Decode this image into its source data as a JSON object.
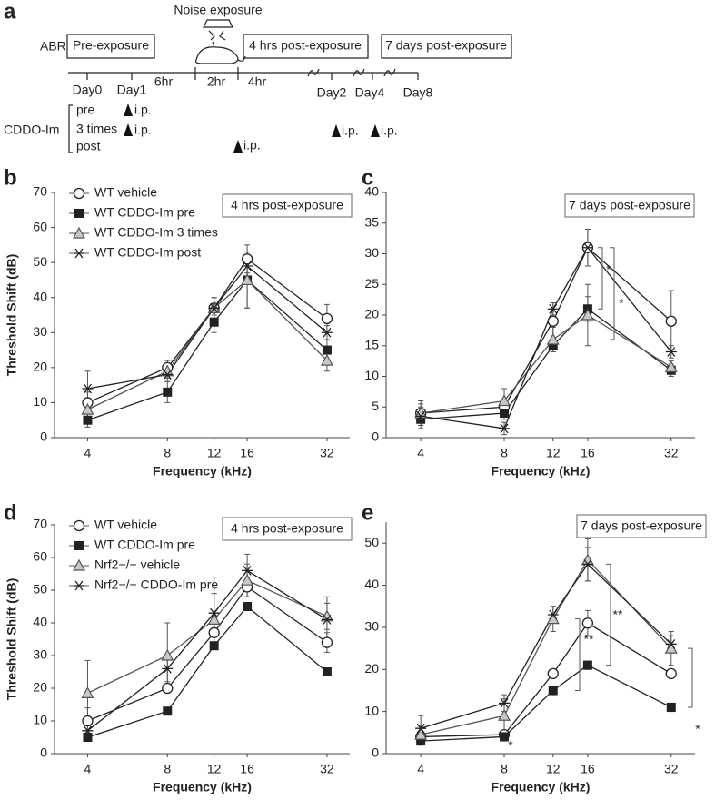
{
  "diagram": {
    "panel": "a",
    "noise_label": "Noise exposure",
    "abr": "ABR",
    "boxes": [
      "Pre-exposure",
      "4 hrs post-exposure",
      "7 days post-exposure"
    ],
    "timeline": [
      "Day0",
      "Day1",
      "6hr",
      "2hr",
      "4hr",
      "Day2",
      "Day4",
      "Day8"
    ],
    "drug": "CDDO-Im",
    "regimens": [
      "pre",
      "3 times",
      "post"
    ],
    "injections": [
      "i.p.",
      "i.p.",
      "i.p.",
      "i.p.",
      "i.p."
    ]
  },
  "chart_data": [
    {
      "type": "line",
      "panel": "b",
      "annotation": "4 hrs post-exposure",
      "x_label": "Frequency (kHz)",
      "y_label": "Threshold Shift (dB)",
      "x": [
        4,
        8,
        12,
        16,
        32
      ],
      "xticks": [
        4,
        8,
        12,
        16,
        32
      ],
      "xlim": [
        3,
        39
      ],
      "xscale": "log",
      "ylim": [
        0,
        70
      ],
      "yticks": [
        0,
        10,
        20,
        30,
        40,
        50,
        60,
        70
      ],
      "legend": "upper left",
      "series": [
        {
          "name": "WT vehicle",
          "color": "#222222",
          "marker": "circle",
          "values": [
            10,
            20,
            37,
            51,
            34
          ],
          "errors": [
            3,
            2,
            3,
            4,
            4
          ]
        },
        {
          "name": "WT CDDO-Im pre",
          "color": "#222222",
          "marker": "square",
          "values": [
            5,
            13,
            33,
            45,
            25
          ],
          "errors": [
            2,
            3,
            3,
            8,
            3
          ]
        },
        {
          "name": "WT CDDO-Im 3 times",
          "color": "#888888",
          "marker": "triangle",
          "values": [
            8,
            19,
            37,
            45,
            22
          ],
          "errors": [
            2,
            2,
            3,
            8,
            3
          ]
        },
        {
          "name": "WT CDDO-Im post",
          "color": "#222222",
          "marker": "star",
          "values": [
            14,
            18,
            37,
            49,
            30
          ],
          "errors": [
            5,
            2,
            2,
            4,
            2
          ]
        }
      ]
    },
    {
      "type": "line",
      "panel": "c",
      "annotation": "7 days post-exposure",
      "x_label": "Frequency (kHz)",
      "x": [
        4,
        8,
        12,
        16,
        32
      ],
      "xticks": [
        4,
        8,
        12,
        16,
        32
      ],
      "xlim": [
        3,
        39
      ],
      "xscale": "log",
      "ylim": [
        0,
        40
      ],
      "yticks": [
        0,
        5,
        10,
        15,
        20,
        25,
        30,
        35,
        40
      ],
      "significance": [
        "*",
        "*"
      ],
      "series": [
        {
          "color": "#222222",
          "marker": "circle",
          "values": [
            4,
            5,
            19,
            31,
            19
          ],
          "errors": [
            2,
            1,
            3,
            3,
            5
          ]
        },
        {
          "color": "#222222",
          "marker": "square",
          "values": [
            3,
            4,
            15,
            21,
            11
          ],
          "errors": [
            1,
            1,
            1,
            2,
            1
          ]
        },
        {
          "color": "#888888",
          "marker": "triangle",
          "values": [
            4,
            6,
            16,
            20,
            11.5
          ],
          "errors": [
            1,
            2,
            2,
            5,
            1
          ]
        },
        {
          "color": "#222222",
          "marker": "star",
          "values": [
            3.5,
            1.5,
            21,
            31,
            14
          ],
          "errors": [
            2,
            1,
            1,
            3,
            1
          ]
        }
      ]
    },
    {
      "type": "line",
      "panel": "d",
      "annotation": "4 hrs post-exposure",
      "x_label": "Frequency (kHz)",
      "y_label": "Threshold Shift (dB)",
      "x": [
        4,
        8,
        12,
        16,
        32
      ],
      "xticks": [
        4,
        8,
        12,
        16,
        32
      ],
      "xlim": [
        3,
        39
      ],
      "xscale": "log",
      "ylim": [
        0,
        70
      ],
      "yticks": [
        0,
        10,
        20,
        30,
        40,
        50,
        60,
        70
      ],
      "legend": "upper left",
      "series": [
        {
          "name": "WT vehicle",
          "color": "#222222",
          "marker": "circle",
          "values": [
            10,
            20,
            37,
            51,
            34
          ],
          "errors": [
            4,
            1,
            3,
            3,
            3
          ]
        },
        {
          "name": "WT CDDO-Im pre",
          "color": "#222222",
          "marker": "square",
          "values": [
            5,
            13,
            33,
            45,
            25
          ],
          "errors": [
            1,
            1,
            1,
            1,
            1
          ]
        },
        {
          "name": "Nrf2−/− vehicle",
          "color": "#888888",
          "marker": "triangle",
          "values": [
            18.5,
            30,
            41,
            53,
            42
          ],
          "errors": [
            10,
            10,
            8,
            5,
            4
          ]
        },
        {
          "name": "Nrf2−/− CDDO-Im pre",
          "color": "#222222",
          "marker": "star",
          "values": [
            7,
            26,
            43,
            56,
            41
          ],
          "errors": [
            3,
            4,
            11,
            5,
            7
          ]
        }
      ]
    },
    {
      "type": "line",
      "panel": "e",
      "annotation": "7 days post-exposure",
      "x_label": "Frequency (kHz)",
      "x": [
        4,
        8,
        12,
        16,
        32
      ],
      "xticks": [
        4,
        8,
        12,
        16,
        32
      ],
      "xlim": [
        3,
        39
      ],
      "xscale": "log",
      "ylim": [
        0,
        55
      ],
      "yticks": [
        0,
        10,
        20,
        30,
        40,
        50
      ],
      "significance": [
        "*",
        "**",
        "**",
        "*"
      ],
      "series": [
        {
          "color": "#222222",
          "marker": "circle",
          "values": [
            4,
            4.5,
            19,
            31,
            19
          ],
          "errors": [
            1,
            1,
            1,
            3,
            1
          ]
        },
        {
          "color": "#222222",
          "marker": "square",
          "values": [
            3,
            4,
            15,
            21,
            11
          ],
          "errors": [
            1,
            1,
            1,
            1,
            1
          ]
        },
        {
          "color": "#888888",
          "marker": "triangle",
          "values": [
            4.5,
            9,
            32,
            46,
            25
          ],
          "errors": [
            2,
            4,
            3,
            5,
            4
          ]
        },
        {
          "color": "#222222",
          "marker": "star",
          "values": [
            6,
            12,
            33,
            45,
            26
          ],
          "errors": [
            3,
            2,
            2,
            4,
            2
          ]
        }
      ]
    }
  ]
}
